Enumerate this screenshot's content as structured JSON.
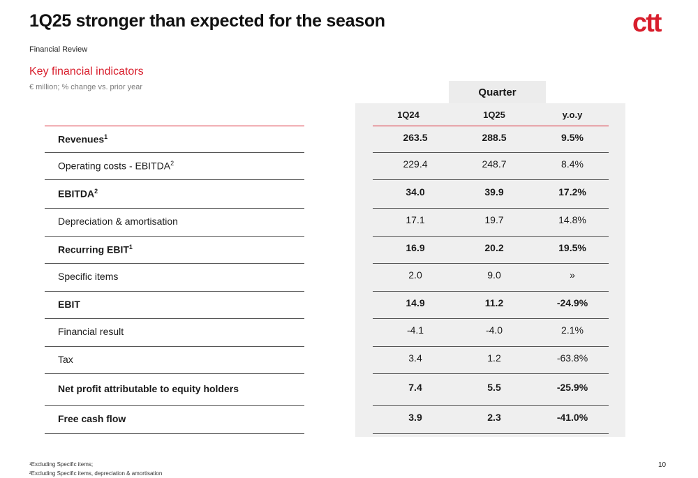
{
  "header": {
    "title": "1Q25 stronger than expected for the season",
    "logo_text": "ctt",
    "subtitle": "Financial Review"
  },
  "section": {
    "title": "Key financial indicators",
    "subtitle": "€ million; % change vs. prior year"
  },
  "table": {
    "group_header": "Quarter",
    "columns": [
      "1Q24",
      "1Q25",
      "y.o.y"
    ],
    "rows": [
      {
        "label": "Revenues",
        "sup": "1",
        "bold": true,
        "values": [
          "263.5",
          "288.5",
          "9.5%"
        ]
      },
      {
        "label": "Operating costs - EBITDA",
        "sup": "2",
        "bold": false,
        "values": [
          "229.4",
          "248.7",
          "8.4%"
        ]
      },
      {
        "label": "EBITDA",
        "sup": "2",
        "bold": true,
        "values": [
          "34.0",
          "39.9",
          "17.2%"
        ]
      },
      {
        "label": "Depreciation & amortisation",
        "sup": "",
        "bold": false,
        "values": [
          "17.1",
          "19.7",
          "14.8%"
        ]
      },
      {
        "label": "Recurring EBIT",
        "sup": "1",
        "bold": true,
        "values": [
          "16.9",
          "20.2",
          "19.5%"
        ]
      },
      {
        "label": "Specific items",
        "sup": "",
        "bold": false,
        "values": [
          "2.0",
          "9.0",
          "»"
        ]
      },
      {
        "label": "EBIT",
        "sup": "",
        "bold": true,
        "values": [
          "14.9",
          "11.2",
          "-24.9%"
        ]
      },
      {
        "label": "Financial result",
        "sup": "",
        "bold": false,
        "values": [
          "-4.1",
          "-4.0",
          "2.1%"
        ]
      },
      {
        "label": "Tax",
        "sup": "",
        "bold": false,
        "values": [
          "3.4",
          "1.2",
          "-63.8%"
        ]
      },
      {
        "label": "Net profit attributable to equity holders",
        "sup": "",
        "bold": true,
        "values": [
          "7.4",
          "5.5",
          "-25.9%"
        ]
      },
      {
        "label": "Free cash flow",
        "sup": "",
        "bold": true,
        "values": [
          "3.9",
          "2.3",
          "-41.0%"
        ]
      }
    ]
  },
  "footnotes": [
    "¹Excluding Specific items;",
    "²Excluding Specific items, depreciation & amortisation"
  ],
  "page_number": "10",
  "colors": {
    "accent": "#d81e2c",
    "panel": "#efefef"
  }
}
